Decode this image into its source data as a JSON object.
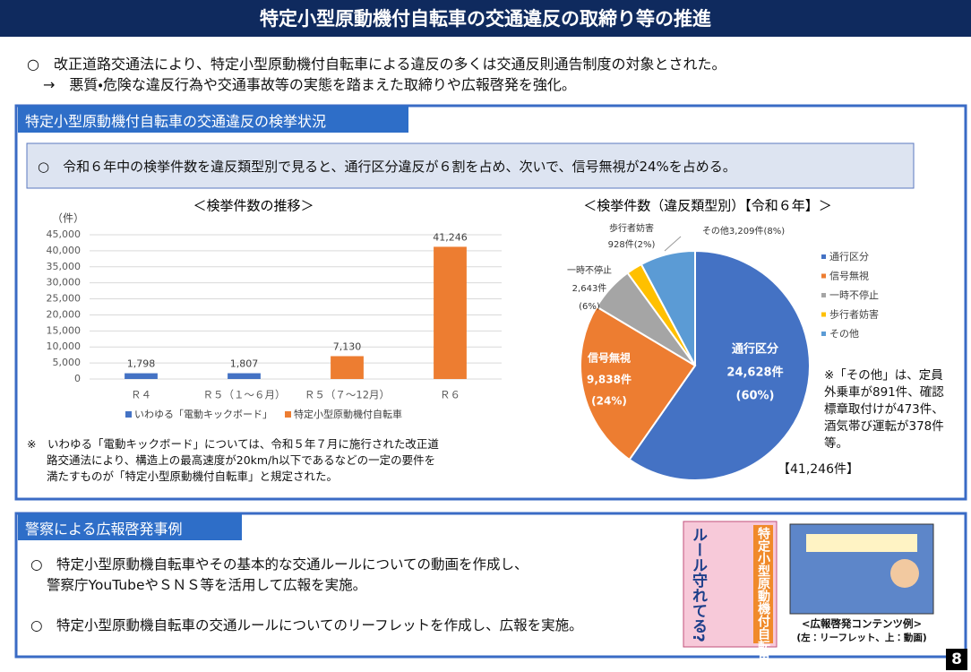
{
  "header": {
    "title": "特定小型原動機付自転車の交通違反の取締り等の推進"
  },
  "intro": [
    "○　改正道路交通法により、特定小型原動機付自転車による違反の多くは交通反則通告制度の対象とされた。",
    "→　悪質・危険な違反行為や交通事故等の実態を踏まえた取締りや広報啓発を強化。"
  ],
  "section1": {
    "heading": "特定小型原動機付自転車の交通違反の検挙状況",
    "summary": "○　令和６年中の検挙件数を違反類型別で見ると、通行区分違反が６割を占め、次いで、信号無視が24%を占める。",
    "footnote": [
      "※　いわゆる「電動キックボード」については、令和５年７月に施行された改正道",
      "路交通法により、構造上の最高速度が20km/h以下であるなどの一定の要件を",
      "満たすものが「特定小型原動機付自転車」と規定された。"
    ]
  },
  "chart_data": [
    {
      "type": "bar",
      "title": "＜検挙件数の推移＞",
      "y_label": "（件）",
      "categories": [
        "Ｒ４",
        "Ｒ５（１～６月）",
        "Ｒ５（７～12月）",
        "Ｒ６"
      ],
      "series": [
        {
          "name": "いわゆる「電動キックボード」",
          "color": "#4472c4",
          "values": [
            1798,
            1807,
            null,
            null
          ],
          "value_labels": [
            "1,798",
            "1,807",
            null,
            null
          ]
        },
        {
          "name": "特定小型原動機付自転車",
          "color": "#ed7d31",
          "values": [
            null,
            null,
            7130,
            41246
          ],
          "value_labels": [
            null,
            null,
            "7,130",
            "41,246"
          ]
        }
      ],
      "ylim": [
        0,
        45000
      ],
      "yticks": [
        0,
        {
          "value": 5000,
          "label": "5,000"
        },
        {
          "value": 10000,
          "label": "10,000"
        },
        {
          "value": 15000,
          "label": "15,000"
        },
        {
          "value": 20000,
          "label": "20,000"
        },
        {
          "value": 25000,
          "label": "25,000"
        },
        {
          "value": 30000,
          "label": "30,000"
        },
        {
          "value": 35000,
          "label": "35,000"
        },
        {
          "value": 40000,
          "label": "40,000"
        },
        {
          "value": 45000,
          "label": "45,000"
        }
      ],
      "grid": true,
      "legend": "bottom"
    },
    {
      "type": "pie",
      "title": "＜検挙件数（違反類型別）【令和６年】＞",
      "categories": [
        "通行区分",
        "信号無視",
        "一時不停止",
        "歩行者妨害",
        "その他"
      ],
      "colors": [
        "#4472c4",
        "#ed7d31",
        "#a5a5a5",
        "#ffc000",
        "#5b9bd5"
      ],
      "values": [
        24628,
        9838,
        2643,
        928,
        3209
      ],
      "value_labels": [
        [
          "通行区分",
          "24,628件",
          "(60%)"
        ],
        [
          "信号無視",
          "9,838件",
          "(24%)"
        ],
        [
          "一時不停止",
          "2,643件",
          "(6%)"
        ],
        [
          "歩行者妨害",
          "928件(2%)"
        ],
        [
          "その他3,209件(8%)"
        ]
      ],
      "total_label": "【41,246件】",
      "note": "※「その他」は、定員外乗車が891件、確認標章取付けが473件、酒気帯び運転が378件等。",
      "legend": "right"
    }
  ],
  "section2": {
    "heading": "警察による広報啓発事例",
    "bullets": [
      [
        "○　特定小型原動機自転車やその基本的な交通ルールについての動画を作成し、",
        "警察庁YouTubeやＳＮＳ等を活用して広報を実施。"
      ],
      [
        "○　特定小型原動機自転車の交通ルールについてのリーフレットを作成し、広報を実施。"
      ]
    ],
    "leaflet_title": "特定小型原動機付自転車",
    "leaflet_catch": "ルール守れてる?",
    "caption": [
      "<広報啓発コンテンツ例>",
      "(左：リーフレット、上：動画)"
    ]
  },
  "page_number": "8"
}
